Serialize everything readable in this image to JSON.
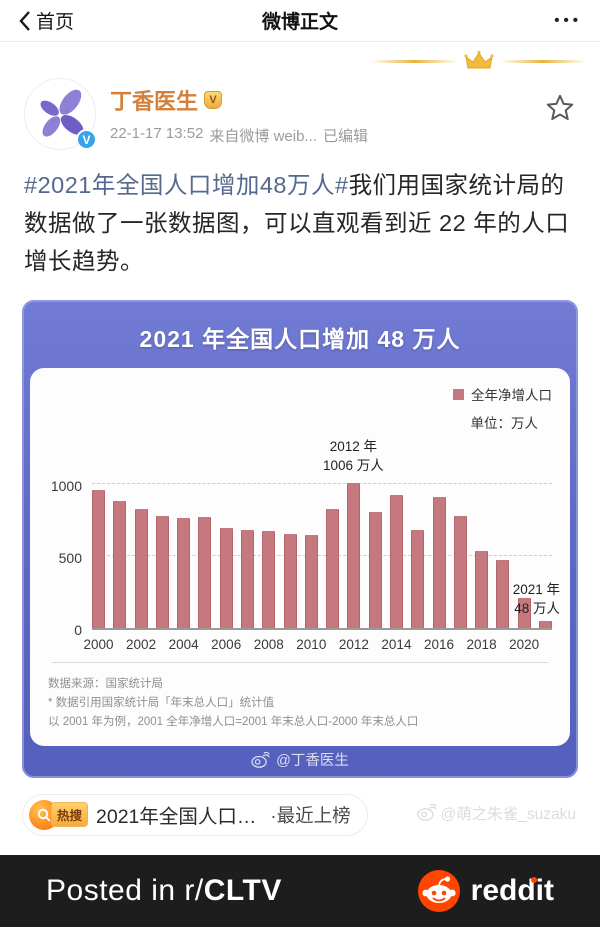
{
  "nav": {
    "back_label": "首页",
    "title": "微博正文",
    "more_glyph": "•••"
  },
  "post": {
    "author": "丁香医生",
    "badge_glyph": "V",
    "time": "22-1-17 13:52",
    "source": "来自微博 weib...",
    "edited": "已编辑",
    "hashtag": "#2021年全国人口增加48万人#",
    "body": "我们用国家统计局的数据做了一张数据图，可以直观看到近 22 年的人口增长趋势。"
  },
  "chart_data": {
    "type": "bar",
    "title": "2021 年全国人口增加 48 万人",
    "legend": "全年净增人口",
    "unit_label": "单位：万人",
    "bar_color": "#c5797f",
    "categories": [
      2000,
      2001,
      2002,
      2003,
      2004,
      2005,
      2006,
      2007,
      2008,
      2009,
      2010,
      2011,
      2012,
      2013,
      2014,
      2015,
      2016,
      2017,
      2018,
      2019,
      2020,
      2021
    ],
    "values": [
      957,
      884,
      826,
      774,
      761,
      768,
      692,
      681,
      673,
      648,
      641,
      825,
      1006,
      804,
      920,
      680,
      906,
      779,
      530,
      467,
      204,
      48
    ],
    "ylim": [
      0,
      1100
    ],
    "yticks": [
      0,
      500,
      1000
    ],
    "x_tick_labels": [
      "2000",
      "2002",
      "2004",
      "2006",
      "2008",
      "2010",
      "2012",
      "2014",
      "2016",
      "2018",
      "2020"
    ],
    "grid": "dashed horizontal",
    "legend_position": "top-right",
    "annotations": [
      {
        "x": 2012,
        "lines": [
          "2012 年",
          "1006 万人"
        ],
        "align": "center"
      },
      {
        "x": 2021,
        "lines": [
          "2021 年",
          "48 万人"
        ],
        "align": "right"
      }
    ],
    "footnotes": [
      "数据来源：国家统计局",
      "* 数据引用国家统计局「年末总人口」统计值",
      "以 2001 年为例，2001 全年净增人口=2001 年末总人口-2000 年末总人口"
    ],
    "watermark": "@丁香医生"
  },
  "hot_search": {
    "badge": "热搜",
    "text": "2021年全国人口…",
    "suffix": "·最近上榜"
  },
  "page_watermark": "@萌之朱雀_suzaku",
  "footer": {
    "posted_prefix": "Posted in r/",
    "subreddit": "CLTV",
    "brand": "reddit"
  }
}
